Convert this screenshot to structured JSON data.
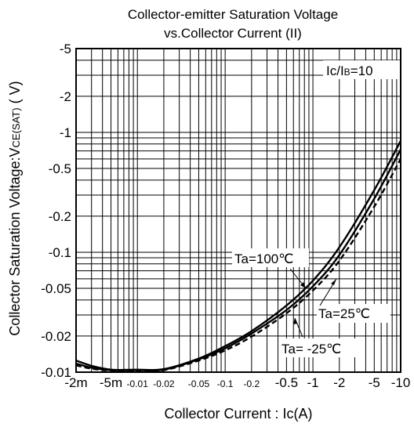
{
  "chart_data": {
    "type": "line",
    "title": "Collector-emitter Saturation Voltage",
    "subtitle": "vs.Collector Current (II)",
    "xlabel": "Collector Current : Ic(A)",
    "ylabel_main": "Collector  Saturation Voltage:V",
    "ylabel_sub": "CE(SAT)",
    "ylabel_unit": " ( V)",
    "x_scale": "log",
    "y_scale": "log",
    "x_range": [
      0.002,
      10
    ],
    "y_range": [
      0.01,
      5
    ],
    "grid": true,
    "x_ticks": [
      {
        "value": 0.002,
        "label": "-2m"
      },
      {
        "value": 0.005,
        "label": "-5m"
      },
      {
        "value": 0.01,
        "label": "-0.01"
      },
      {
        "value": 0.02,
        "label": "-0.02"
      },
      {
        "value": 0.05,
        "label": "-0.05"
      },
      {
        "value": 0.1,
        "label": "-0.1"
      },
      {
        "value": 0.2,
        "label": "-0.2"
      },
      {
        "value": 0.5,
        "label": "-0.5"
      },
      {
        "value": 1,
        "label": "-1"
      },
      {
        "value": 2,
        "label": "-2"
      },
      {
        "value": 5,
        "label": "-5"
      },
      {
        "value": 10,
        "label": "-10"
      }
    ],
    "y_ticks": [
      {
        "value": 5,
        "label": "-5"
      },
      {
        "value": 2,
        "label": "-2"
      },
      {
        "value": 1,
        "label": "-1"
      },
      {
        "value": 0.5,
        "label": "-0.5"
      },
      {
        "value": 0.2,
        "label": "-0.2"
      },
      {
        "value": 0.1,
        "label": "-0.1"
      },
      {
        "value": 0.05,
        "label": "-0.05"
      },
      {
        "value": 0.02,
        "label": "-0.02"
      },
      {
        "value": 0.01,
        "label": "-0.01"
      }
    ],
    "condition_label": "Ic/I",
    "condition_sub": "B",
    "condition_value": "=10",
    "series": [
      {
        "name": "Ta=100℃",
        "style": "solid",
        "x": [
          0.002,
          0.003,
          0.005,
          0.01,
          0.02,
          0.05,
          0.1,
          0.2,
          0.5,
          1,
          2,
          5,
          10
        ],
        "y": [
          0.0125,
          0.0113,
          0.0105,
          0.0105,
          0.0106,
          0.013,
          0.0165,
          0.022,
          0.036,
          0.058,
          0.11,
          0.33,
          0.85
        ]
      },
      {
        "name": "Ta=25℃",
        "style": "solid",
        "x": [
          0.002,
          0.003,
          0.005,
          0.01,
          0.02,
          0.05,
          0.1,
          0.2,
          0.5,
          1,
          2,
          5,
          10
        ],
        "y": [
          0.0118,
          0.0109,
          0.0104,
          0.0104,
          0.0105,
          0.0128,
          0.0158,
          0.021,
          0.033,
          0.052,
          0.095,
          0.28,
          0.72
        ]
      },
      {
        "name": "Ta= -25℃",
        "style": "dashed",
        "x": [
          0.002,
          0.003,
          0.005,
          0.01,
          0.02,
          0.05,
          0.1,
          0.2,
          0.5,
          1,
          2,
          5,
          10
        ],
        "y": [
          0.0114,
          0.0107,
          0.0103,
          0.0103,
          0.0104,
          0.0125,
          0.0152,
          0.0198,
          0.031,
          0.048,
          0.085,
          0.24,
          0.6
        ]
      }
    ]
  }
}
